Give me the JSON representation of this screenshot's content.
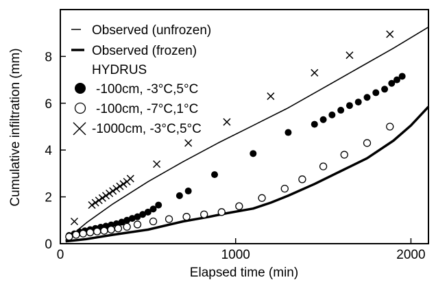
{
  "chart_data": {
    "type": "scatter",
    "xlabel": "Elapsed time (min)",
    "ylabel": "Cumulative infiltration (mm)",
    "xlim": [
      0,
      2100
    ],
    "ylim": [
      0,
      10
    ],
    "x_ticks": [
      0,
      1000,
      2000
    ],
    "x_tick_labels": [
      "0",
      "1000",
      "2000"
    ],
    "y_ticks": [
      0,
      2,
      4,
      6,
      8
    ],
    "y_tick_labels": [
      "0",
      "2",
      "4",
      "6",
      "8"
    ],
    "grid": false,
    "legend_position": "top-left",
    "legend": {
      "observed_unfrozen": "Observed (unfrozen)",
      "observed_frozen": "Observed (frozen)",
      "hydrus_heading": "HYDRUS",
      "sim1": "-100cm, -3°C,5°C",
      "sim2": "-100cm, -7°C,1°C",
      "sim3": "-1000cm, -3°C,5°C"
    },
    "series": [
      {
        "name": "Observed (unfrozen)",
        "style": "line-thin",
        "x": [
          30,
          150,
          300,
          500,
          700,
          900,
          1100,
          1300,
          1500,
          1700,
          1900,
          2100
        ],
        "y": [
          0.15,
          0.9,
          1.7,
          2.65,
          3.5,
          4.3,
          5.05,
          5.8,
          6.65,
          7.5,
          8.35,
          9.25
        ]
      },
      {
        "name": "Observed (frozen)",
        "style": "line-thick",
        "x": [
          30,
          150,
          300,
          500,
          700,
          850,
          950,
          1100,
          1200,
          1300,
          1450,
          1600,
          1750,
          1900,
          2000,
          2100
        ],
        "y": [
          0.1,
          0.2,
          0.38,
          0.6,
          0.95,
          1.15,
          1.3,
          1.5,
          1.75,
          2.05,
          2.55,
          3.1,
          3.65,
          4.4,
          5.05,
          5.85
        ]
      },
      {
        "name": "-100cm, -3°C,5°C",
        "marker": "filled-circle",
        "x": [
          50,
          80,
          110,
          140,
          170,
          200,
          230,
          260,
          290,
          320,
          350,
          380,
          410,
          440,
          470,
          500,
          530,
          560,
          680,
          730,
          880,
          1100,
          1300,
          1450,
          1500,
          1550,
          1600,
          1650,
          1700,
          1750,
          1800,
          1850,
          1890,
          1920,
          1950
        ],
        "y": [
          0.35,
          0.42,
          0.5,
          0.55,
          0.6,
          0.65,
          0.7,
          0.75,
          0.8,
          0.85,
          0.92,
          1.0,
          1.08,
          1.15,
          1.25,
          1.35,
          1.48,
          1.65,
          2.05,
          2.25,
          2.95,
          3.85,
          4.75,
          5.1,
          5.3,
          5.5,
          5.7,
          5.9,
          6.05,
          6.25,
          6.45,
          6.6,
          6.85,
          7.0,
          7.15
        ],
        "size": 10
      },
      {
        "name": "-100cm, -7°C,1°C",
        "marker": "open-circle",
        "x": [
          50,
          90,
          130,
          170,
          210,
          250,
          290,
          330,
          380,
          440,
          530,
          620,
          720,
          820,
          920,
          1020,
          1150,
          1280,
          1380,
          1500,
          1620,
          1750,
          1880
        ],
        "y": [
          0.3,
          0.38,
          0.43,
          0.48,
          0.52,
          0.55,
          0.6,
          0.65,
          0.72,
          0.82,
          0.95,
          1.05,
          1.15,
          1.25,
          1.35,
          1.6,
          1.95,
          2.35,
          2.75,
          3.3,
          3.8,
          4.3,
          5.0
        ],
        "size": 10
      },
      {
        "name": "-1000cm, -3°C,5°C",
        "marker": "x",
        "x": [
          80,
          180,
          200,
          220,
          240,
          260,
          280,
          300,
          320,
          340,
          360,
          380,
          400,
          550,
          730,
          950,
          1200,
          1450,
          1650,
          1880
        ],
        "y": [
          0.95,
          1.65,
          1.75,
          1.85,
          1.95,
          2.05,
          2.15,
          2.25,
          2.35,
          2.45,
          2.55,
          2.65,
          2.78,
          3.4,
          4.3,
          5.2,
          6.3,
          7.3,
          8.05,
          8.95
        ],
        "size": 10
      }
    ]
  }
}
